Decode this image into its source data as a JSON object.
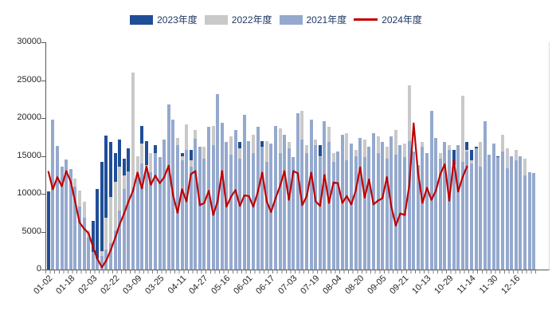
{
  "legend": {
    "text_color": "#1F3864",
    "items": [
      {
        "label": "2023年度",
        "color": "#1F4E97",
        "kind": "bar"
      },
      {
        "label": "2022年度",
        "color": "#C9C9C9",
        "kind": "bar"
      },
      {
        "label": "2021年度",
        "color": "#95A9CE",
        "kind": "bar"
      },
      {
        "label": "2024年度",
        "color": "#C00000",
        "kind": "line"
      }
    ]
  },
  "y_axis": {
    "min": 0,
    "max": 30000,
    "step": 5000,
    "ticks": [
      "30000",
      "25000",
      "20000",
      "15000",
      "10000",
      "5000",
      "0"
    ]
  },
  "chart_data": {
    "type": "bar",
    "note_type": "three overlapped daily bar series (drawn back-to-front 2023,2022,2021) with one red line series for 2024",
    "title": "",
    "xlabel": "",
    "ylabel": "",
    "ylim": [
      0,
      30000
    ],
    "grid": false,
    "legend_position": "top-center",
    "n_points": 110,
    "tick_every": 5,
    "categories": [
      "01-02",
      "01-18",
      "02-03",
      "02-22",
      "03-09",
      "03-25",
      "04-11",
      "04-27",
      "05-16",
      "06-01",
      "06-17",
      "07-03",
      "07-19",
      "08-04",
      "08-20",
      "09-05",
      "09-21",
      "10-13",
      "10-29",
      "11-14",
      "11-30",
      "12-16"
    ],
    "series": [
      {
        "name": "2023年度",
        "type": "bar",
        "color": "#1F4E97",
        "values": [
          10300,
          11800,
          10400,
          12000,
          10800,
          8200,
          5400,
          2600,
          1200,
          1800,
          6400,
          10600,
          14200,
          17700,
          16800,
          15400,
          17200,
          14600,
          16000,
          13800,
          15000,
          19000,
          17000,
          14400,
          16400,
          13600,
          15200,
          14000,
          16800,
          13200,
          15400,
          13000,
          15800,
          12600,
          14800,
          13400,
          15800,
          12800,
          14200,
          13000,
          15600,
          12400,
          14400,
          16800,
          13600,
          15000,
          12800,
          13800,
          17000,
          12600,
          14600,
          16200,
          12400,
          15400,
          13000,
          14200,
          12600,
          15800,
          13400,
          14800,
          12800,
          16400,
          13000,
          15200,
          12600,
          14000,
          12400,
          15600,
          13200,
          14600,
          12600,
          15000,
          13600,
          12200,
          14400,
          13000,
          15400,
          12400,
          14000,
          12800,
          14600,
          12200,
          13800,
          11000,
          15200,
          12600,
          14200,
          16000,
          12800,
          14600,
          12200,
          15800,
          13400,
          12600,
          16800,
          15800,
          16200,
          12600,
          14000,
          12200,
          13600,
          15000,
          12400,
          14600,
          12000,
          13800,
          12200,
          13400,
          12800,
          11000
        ]
      },
      {
        "name": "2022年度",
        "type": "bar",
        "color": "#C9C9C9",
        "values": [
          0,
          12800,
          13600,
          11800,
          12600,
          11200,
          12000,
          10400,
          9000,
          5200,
          2000,
          1200,
          2400,
          6800,
          9600,
          11600,
          13600,
          12400,
          10800,
          26000,
          15000,
          16600,
          13800,
          15400,
          13000,
          14600,
          16800,
          15200,
          13600,
          17400,
          15000,
          19200,
          14400,
          18400,
          13800,
          16200,
          13400,
          19000,
          14800,
          16600,
          13800,
          17600,
          14200,
          16000,
          13000,
          15400,
          17800,
          13600,
          15800,
          17000,
          14000,
          16400,
          18600,
          14600,
          16800,
          13800,
          15600,
          21000,
          16400,
          14000,
          17200,
          15000,
          13600,
          18800,
          15400,
          14200,
          16600,
          18000,
          13800,
          15800,
          14600,
          17200,
          13400,
          15000,
          17600,
          14000,
          16200,
          13600,
          18400,
          15200,
          16600,
          24300,
          14600,
          13000,
          16800,
          14200,
          16000,
          13600,
          15400,
          14000,
          16400,
          13800,
          15000,
          23000,
          15800,
          14400,
          13600,
          16800,
          14200,
          13200,
          15200,
          13800,
          17800,
          16000,
          13600,
          15800,
          13200,
          14600,
          10000,
          12000
        ]
      },
      {
        "name": "2021年度",
        "type": "bar",
        "color": "#95A9CE",
        "values": [
          0,
          19800,
          16300,
          13600,
          14500,
          13300,
          11000,
          8300,
          6800,
          4200,
          2300,
          1500,
          1800,
          2600,
          3500,
          5200,
          7800,
          10600,
          13000,
          10800,
          12500,
          14000,
          13400,
          12800,
          15400,
          14800,
          17200,
          21800,
          19800,
          16400,
          14400,
          15800,
          13600,
          17300,
          16200,
          14600,
          18800,
          16400,
          23200,
          19400,
          16800,
          15200,
          18400,
          14600,
          20400,
          17000,
          15400,
          18800,
          16200,
          14200,
          16600,
          19000,
          15400,
          17800,
          16000,
          14800,
          20600,
          17200,
          15400,
          19800,
          16400,
          14800,
          19600,
          16800,
          14200,
          15600,
          17800,
          14400,
          16600,
          15000,
          17400,
          14800,
          16200,
          18000,
          15400,
          16800,
          14600,
          17600,
          15200,
          16400,
          14800,
          17000,
          15600,
          13800,
          16200,
          15400,
          21000,
          17400,
          14600,
          16800,
          15800,
          13400,
          16400,
          14200,
          15600,
          14000,
          16000,
          13600,
          19600,
          15200,
          16600,
          14800,
          15600,
          13400,
          15000,
          14400,
          15000,
          12400,
          12800,
          12700
        ]
      },
      {
        "name": "2024年度",
        "type": "line",
        "color": "#C00000",
        "values": [
          12900,
          10600,
          12200,
          11000,
          13000,
          11600,
          9000,
          6200,
          5400,
          4800,
          3000,
          1400,
          300,
          1200,
          2600,
          4200,
          6000,
          7400,
          9000,
          10400,
          12800,
          10700,
          13600,
          11200,
          12400,
          11400,
          12200,
          13700,
          9800,
          7500,
          10600,
          9000,
          12600,
          13000,
          8500,
          8800,
          10400,
          7200,
          9000,
          13000,
          8300,
          9600,
          10500,
          8400,
          9800,
          9700,
          8300,
          10200,
          12800,
          9000,
          7600,
          9400,
          11000,
          13000,
          9200,
          13000,
          12700,
          8500,
          9700,
          12800,
          9000,
          8400,
          12500,
          8800,
          11500,
          11400,
          8800,
          9700,
          8600,
          10400,
          13500,
          9500,
          11900,
          8600,
          9100,
          9400,
          12200,
          8300,
          5800,
          7400,
          7200,
          11000,
          19300,
          12800,
          8800,
          10800,
          9200,
          10400,
          12600,
          13900,
          9100,
          14400,
          10300,
          12200,
          13600,
          null,
          null,
          null,
          null,
          null,
          null,
          null,
          null,
          null,
          null,
          null,
          null,
          null,
          null,
          null
        ]
      }
    ]
  }
}
